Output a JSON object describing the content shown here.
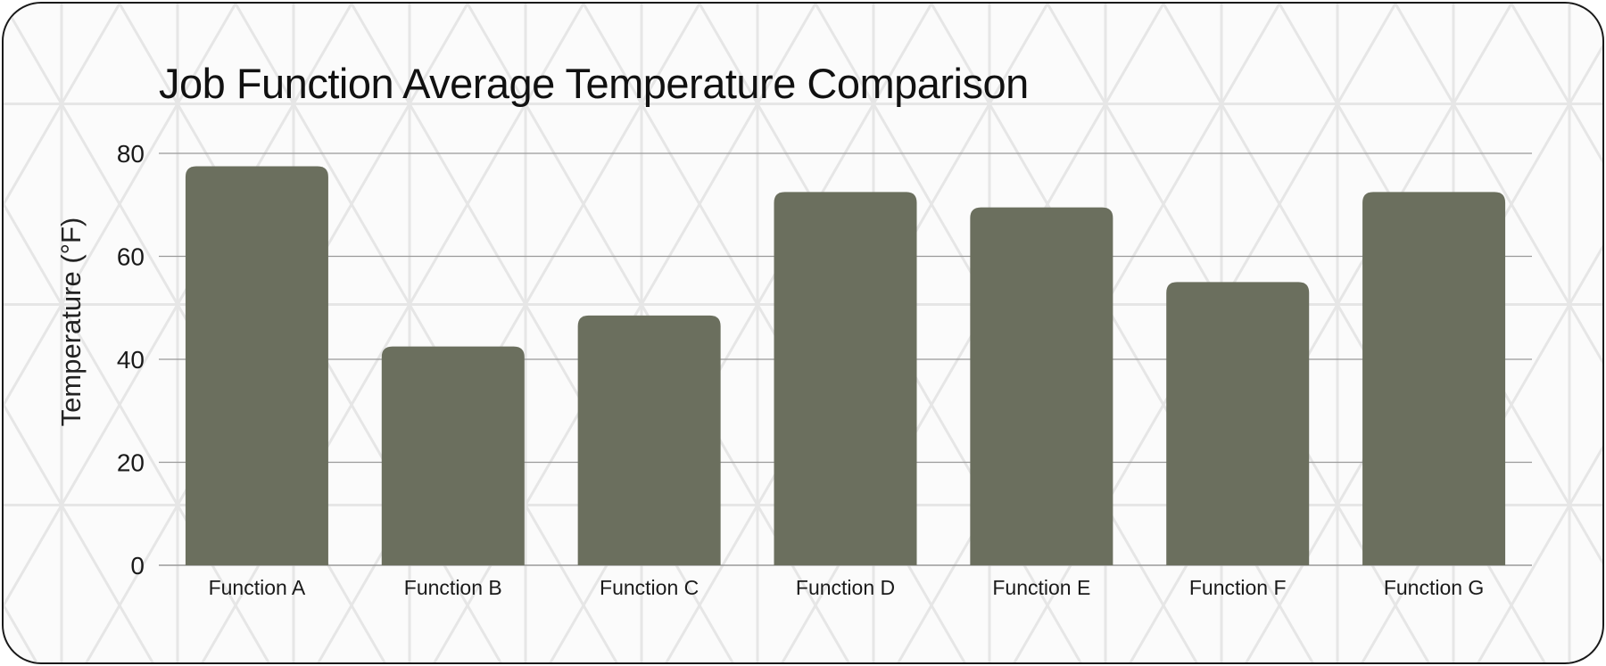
{
  "chart_data": {
    "type": "bar",
    "title": "Job Function Average Temperature Comparison",
    "xlabel": "",
    "ylabel": "Temperature (°F)",
    "categories": [
      "Function A",
      "Function B",
      "Function C",
      "Function D",
      "Function E",
      "Function F",
      "Function G"
    ],
    "values": [
      77.5,
      42.5,
      48.5,
      72.5,
      69.5,
      55,
      72.5
    ],
    "ylim": [
      0,
      80
    ],
    "yticks": [
      "0",
      "20",
      "40",
      "60",
      "80"
    ],
    "grid": true,
    "legend": "none",
    "colors": {
      "bar": "#6b6f5e",
      "grid": "#9a9a9a",
      "text": "#1a1a1a"
    }
  }
}
